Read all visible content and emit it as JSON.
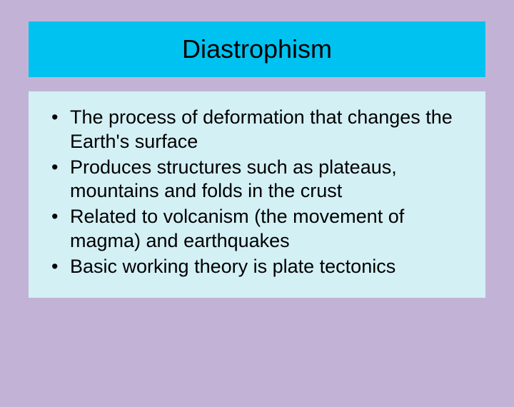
{
  "slide": {
    "title": "Diastrophism",
    "title_fontsize": 36,
    "title_bg_color": "#00c2f0",
    "title_text_color": "#000000",
    "content_bg_color": "#d3f0f5",
    "page_bg_color": "#c2b3d6",
    "bullets": [
      "The process of deformation that changes the Earth's surface",
      "Produces structures such as plateaus, mountains and folds in the crust",
      "Related to volcanism (the movement of magma) and earthquakes",
      "Basic working theory is plate tectonics"
    ],
    "bullet_fontsize": 27,
    "bullet_text_color": "#000000"
  }
}
